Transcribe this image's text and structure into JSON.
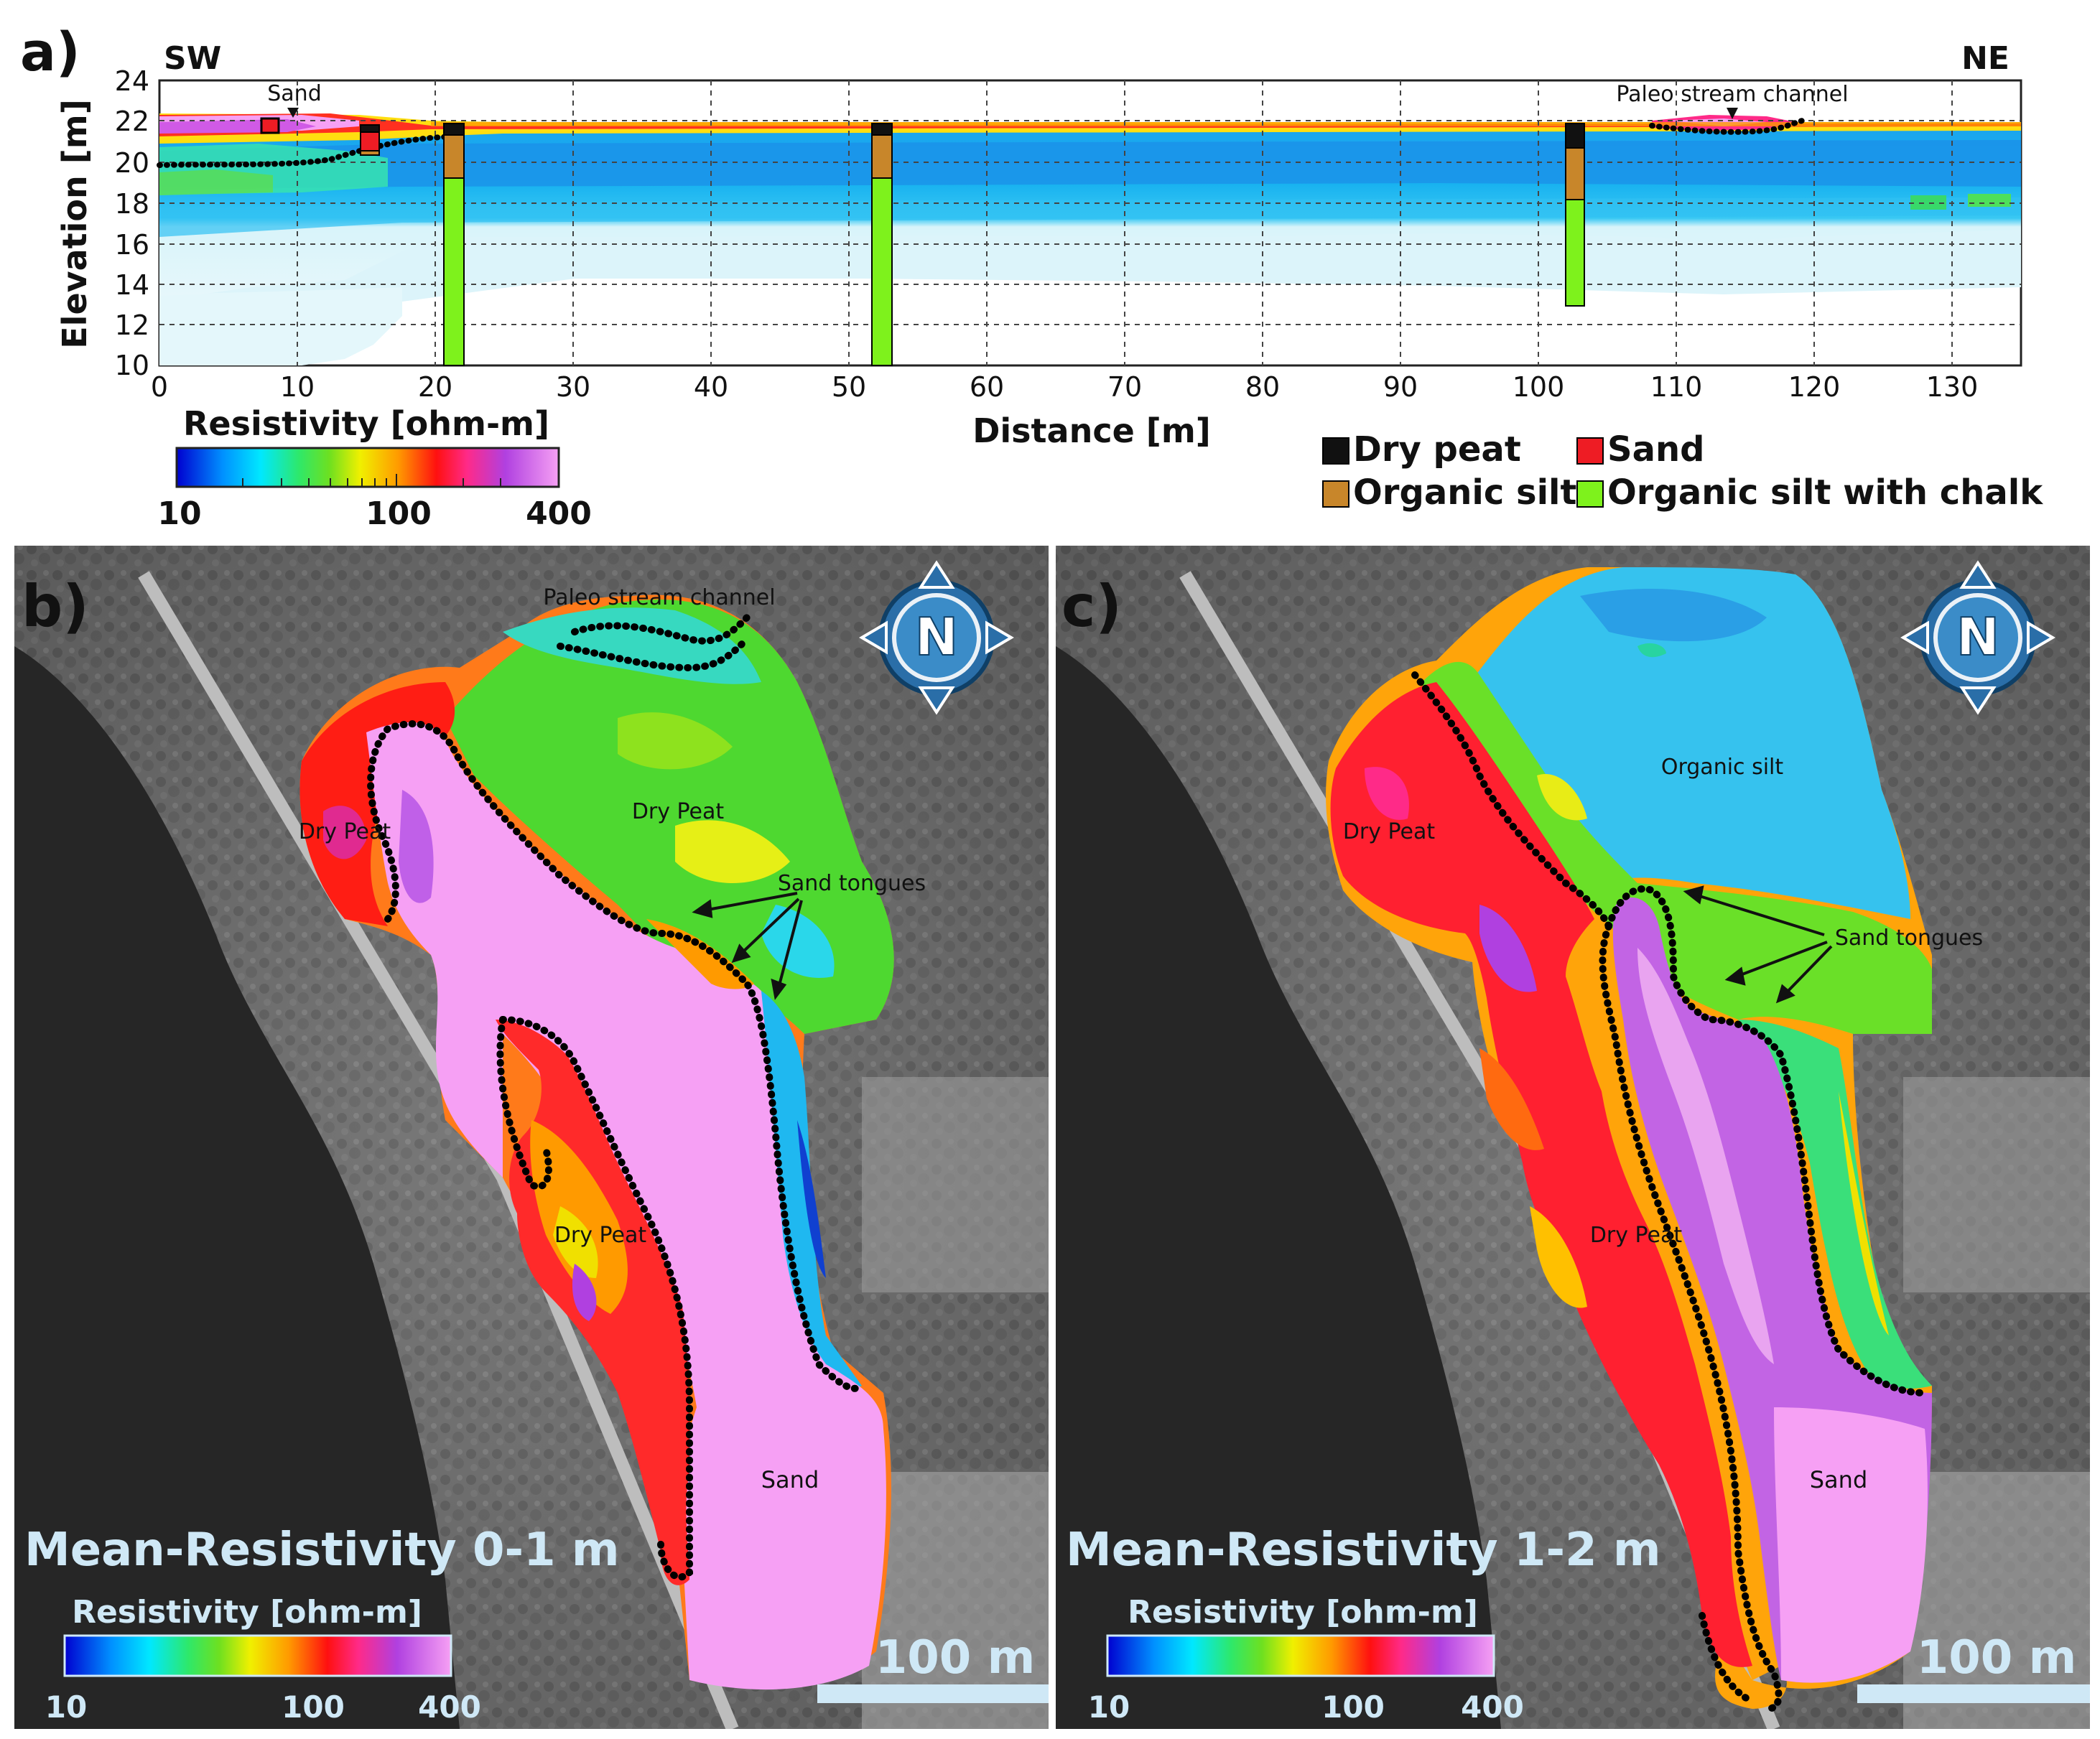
{
  "panel_a": {
    "label": "a)",
    "dir_left": "SW",
    "dir_right": "NE",
    "ylabel": "Elevation [m]",
    "xlabel": "Distance [m]",
    "yticks": [
      "24",
      "22",
      "20",
      "18",
      "16",
      "14",
      "12",
      "10"
    ],
    "xticks": [
      "0",
      "10",
      "20",
      "30",
      "40",
      "50",
      "60",
      "70",
      "80",
      "90",
      "100",
      "110",
      "120",
      "130"
    ],
    "ann_sand": "Sand",
    "ann_channel": "Paleo stream channel",
    "colorbar_title": "Resistivity [ohm-m]",
    "colorbar_ticks": [
      "10",
      "100",
      "400"
    ],
    "legend": {
      "dry_peat": "Dry peat",
      "sand": "Sand",
      "organic_silt": "Organic silt",
      "organic_silt_chalk": "Organic silt with chalk"
    },
    "legend_colors": {
      "dry_peat": "#111111",
      "sand": "#ee1c24",
      "organic_silt": "#c8862a",
      "organic_silt_chalk": "#7ef21c"
    }
  },
  "panel_b": {
    "label": "b)",
    "title": "Mean-Resistivity 0-1 m",
    "ann_channel": "Paleo stream channel",
    "ann_dry_peat_1": "Dry Peat",
    "ann_dry_peat_2": "Dry Peat",
    "ann_dry_peat_3": "Dry Peat",
    "ann_sand_tongues": "Sand tongues",
    "ann_sand": "Sand",
    "north": "N",
    "scale": "100 m",
    "colorbar_title": "Resistivity [ohm-m]",
    "colorbar_ticks": [
      "10",
      "100",
      "400"
    ]
  },
  "panel_c": {
    "label": "c)",
    "title": "Mean-Resistivity 1-2 m",
    "ann_organic_silt": "Organic silt",
    "ann_dry_peat_1": "Dry Peat",
    "ann_dry_peat_2": "Dry Peat",
    "ann_sand_tongues": "Sand tongues",
    "ann_sand": "Sand",
    "north": "N",
    "scale": "100 m",
    "colorbar_title": "Resistivity [ohm-m]",
    "colorbar_ticks": [
      "10",
      "100",
      "400"
    ]
  },
  "colors": {
    "resistivity_scale": [
      "#0000d0",
      "#0090ff",
      "#00e8ff",
      "#2ee86a",
      "#6ee020",
      "#f0f000",
      "#ff9a00",
      "#ff1010",
      "#ff2a88",
      "#b040e0",
      "#f6a0f4"
    ],
    "title_text": "#cfe8f6",
    "scale_bar": "#cfe8f6"
  }
}
